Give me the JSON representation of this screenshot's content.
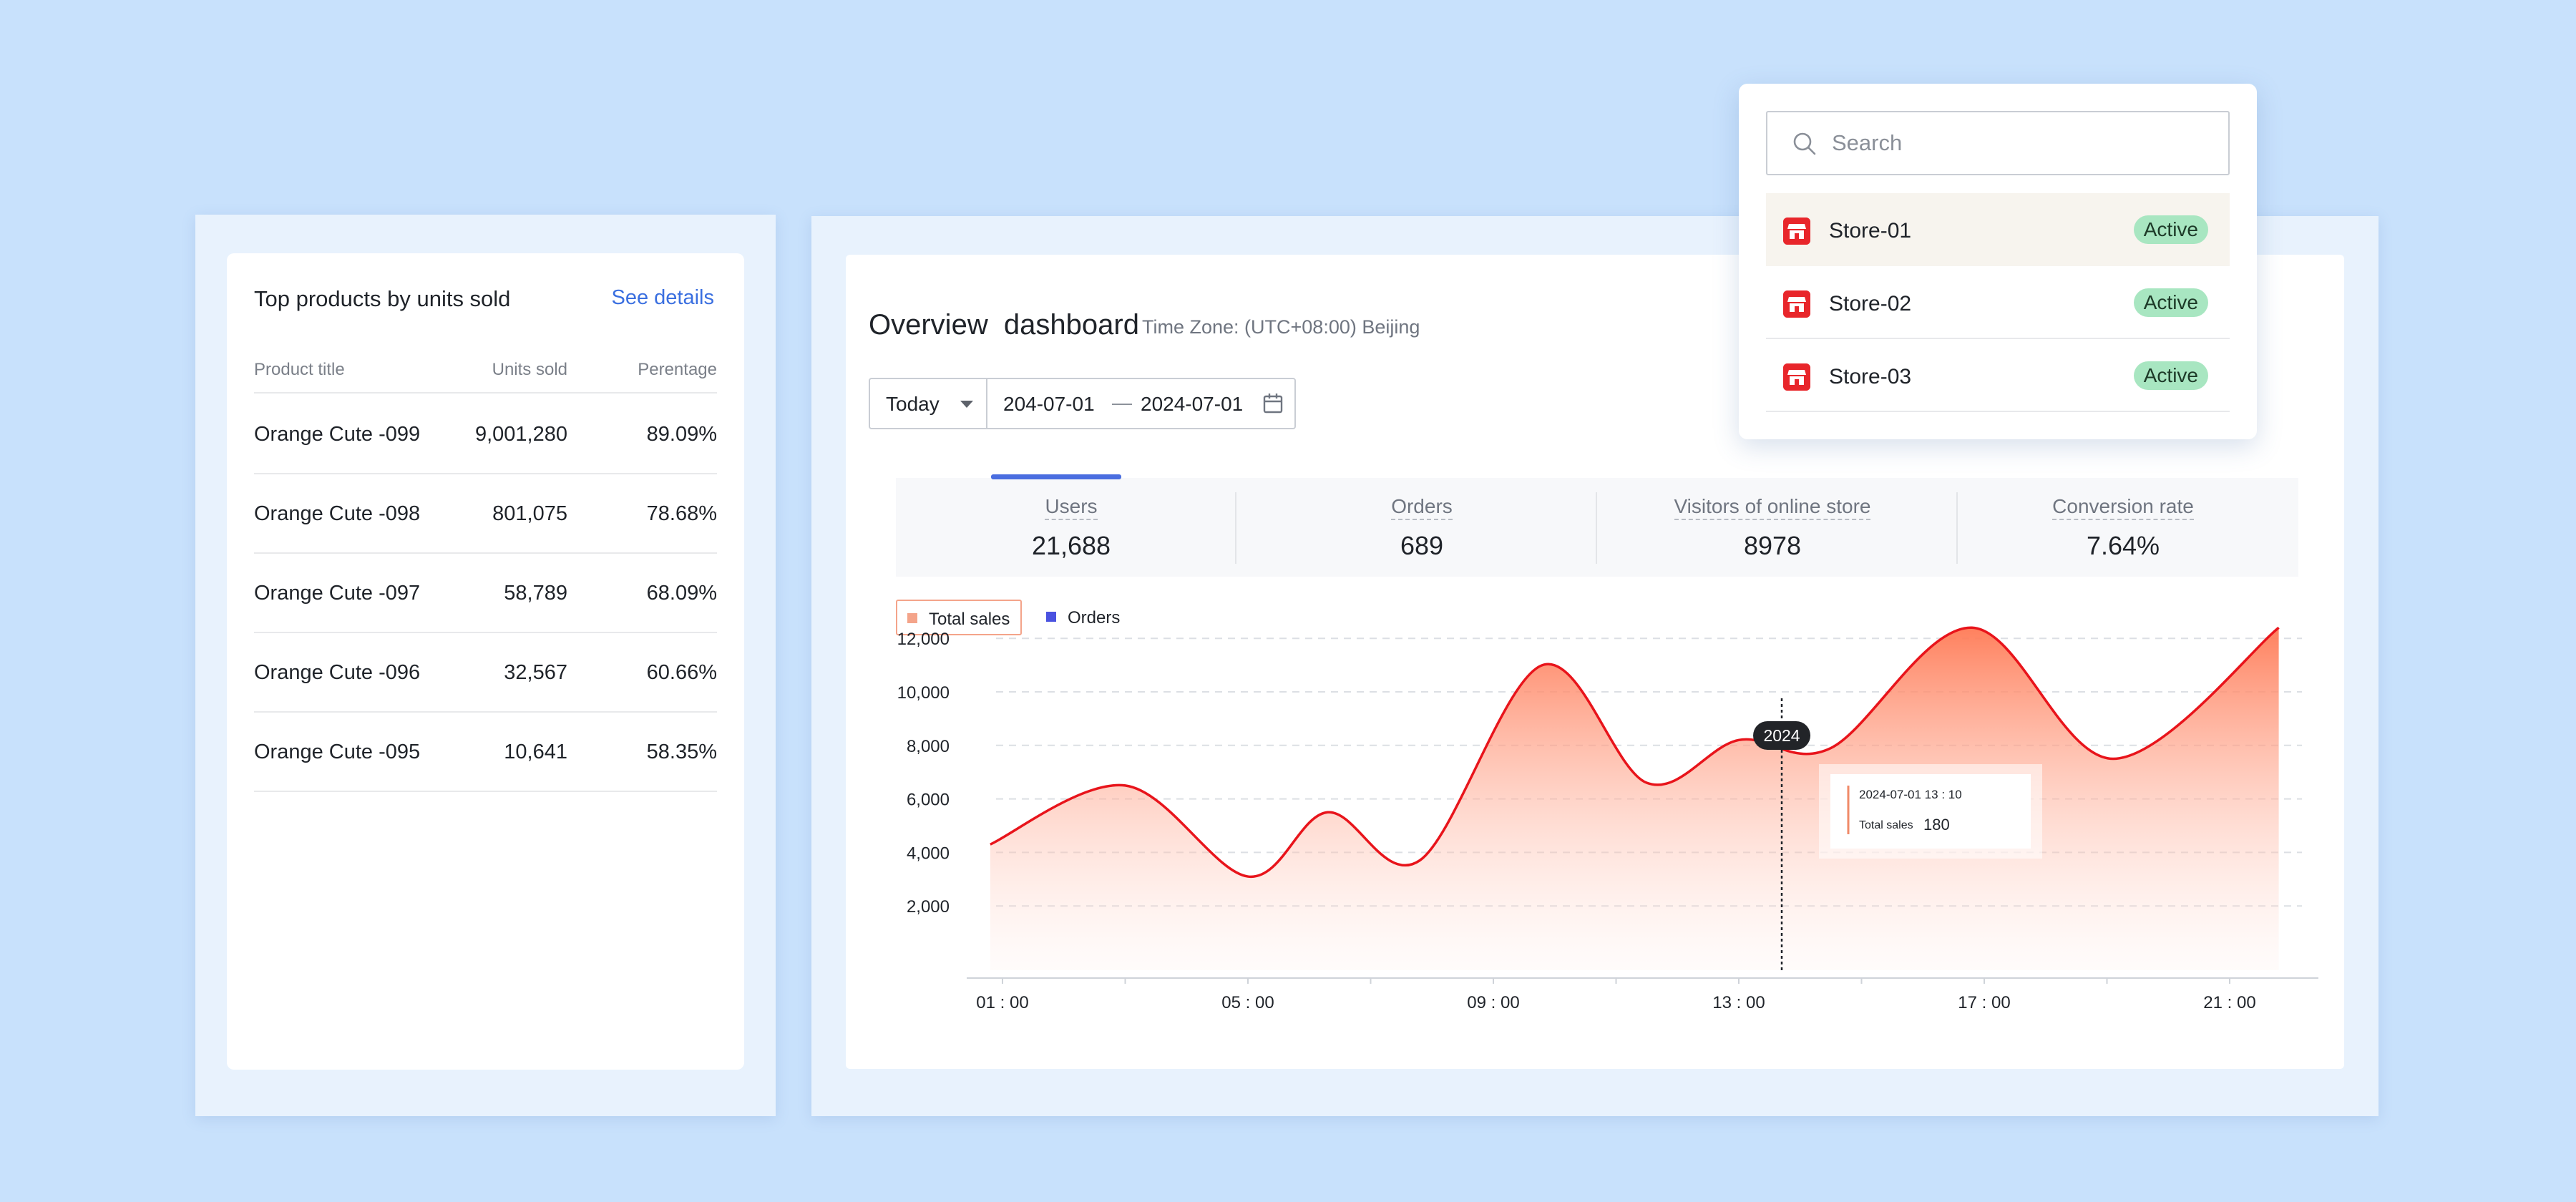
{
  "top_products": {
    "title": "Top products by units sold",
    "see_details": "See details",
    "columns": [
      "Product title",
      "Units sold",
      "Perentage"
    ],
    "rows": [
      {
        "title": "Orange Cute -099",
        "units": "9,001,280",
        "pct": "89.09%"
      },
      {
        "title": "Orange Cute -098",
        "units": "801,075",
        "pct": "78.68%"
      },
      {
        "title": "Orange Cute -097",
        "units": "58,789",
        "pct": "68.09%"
      },
      {
        "title": "Orange Cute -096",
        "units": "32,567",
        "pct": "60.66%"
      },
      {
        "title": "Orange Cute -095",
        "units": "10,641",
        "pct": "58.35%"
      }
    ]
  },
  "dashboard": {
    "title": "Overview  dashboard",
    "timezone": "Time Zone: (UTC+08:00) Beijing",
    "date_range": {
      "preset": "Today",
      "from": "204-07-01",
      "separator": "—",
      "to": "2024-07-01"
    },
    "stats": [
      {
        "label": "Users",
        "value": "21,688",
        "active": true
      },
      {
        "label": "Orders",
        "value": "689",
        "active": false
      },
      {
        "label": "Visitors of online store",
        "value": "8978",
        "active": false
      },
      {
        "label": "Conversion rate",
        "value": "7.64%",
        "active": false
      }
    ],
    "legend": [
      {
        "name": "Total sales",
        "color": "#f4a48a"
      },
      {
        "name": "Orders",
        "color": "#4a52e0"
      }
    ]
  },
  "chart_data": {
    "type": "area",
    "x_ticks": [
      "01 : 00",
      "05 : 00",
      "09 : 00",
      "13 : 00",
      "17 : 00",
      "21 : 00"
    ],
    "y_ticks": [
      "2,000",
      "4,000",
      "6,000",
      "8,000",
      "10,000",
      "12,000"
    ],
    "ylim": [
      0,
      12000
    ],
    "xlim": [
      0.8,
      22.3
    ],
    "series": [
      {
        "name": "Total sales",
        "color": "#e8141b",
        "x": [
          0.8,
          3.0,
          5.0,
          6.3,
          7.8,
          9.8,
          11.5,
          13.0,
          14.5,
          16.8,
          19.1,
          21.8
        ],
        "y": [
          4300,
          6500,
          3100,
          5500,
          3700,
          11000,
          6600,
          8200,
          7900,
          12400,
          7500,
          12400
        ]
      }
    ],
    "hover": {
      "marker_label": "2024",
      "x": 13.7,
      "date": "2024-07-01",
      "time": "13 : 10",
      "series": "Total sales",
      "value": "180"
    }
  },
  "store_popup": {
    "search_placeholder": "Search",
    "stores": [
      {
        "name": "Store-01",
        "status": "Active",
        "selected": true
      },
      {
        "name": "Store-02",
        "status": "Active",
        "selected": false
      },
      {
        "name": "Store-03",
        "status": "Active",
        "selected": false
      }
    ]
  }
}
